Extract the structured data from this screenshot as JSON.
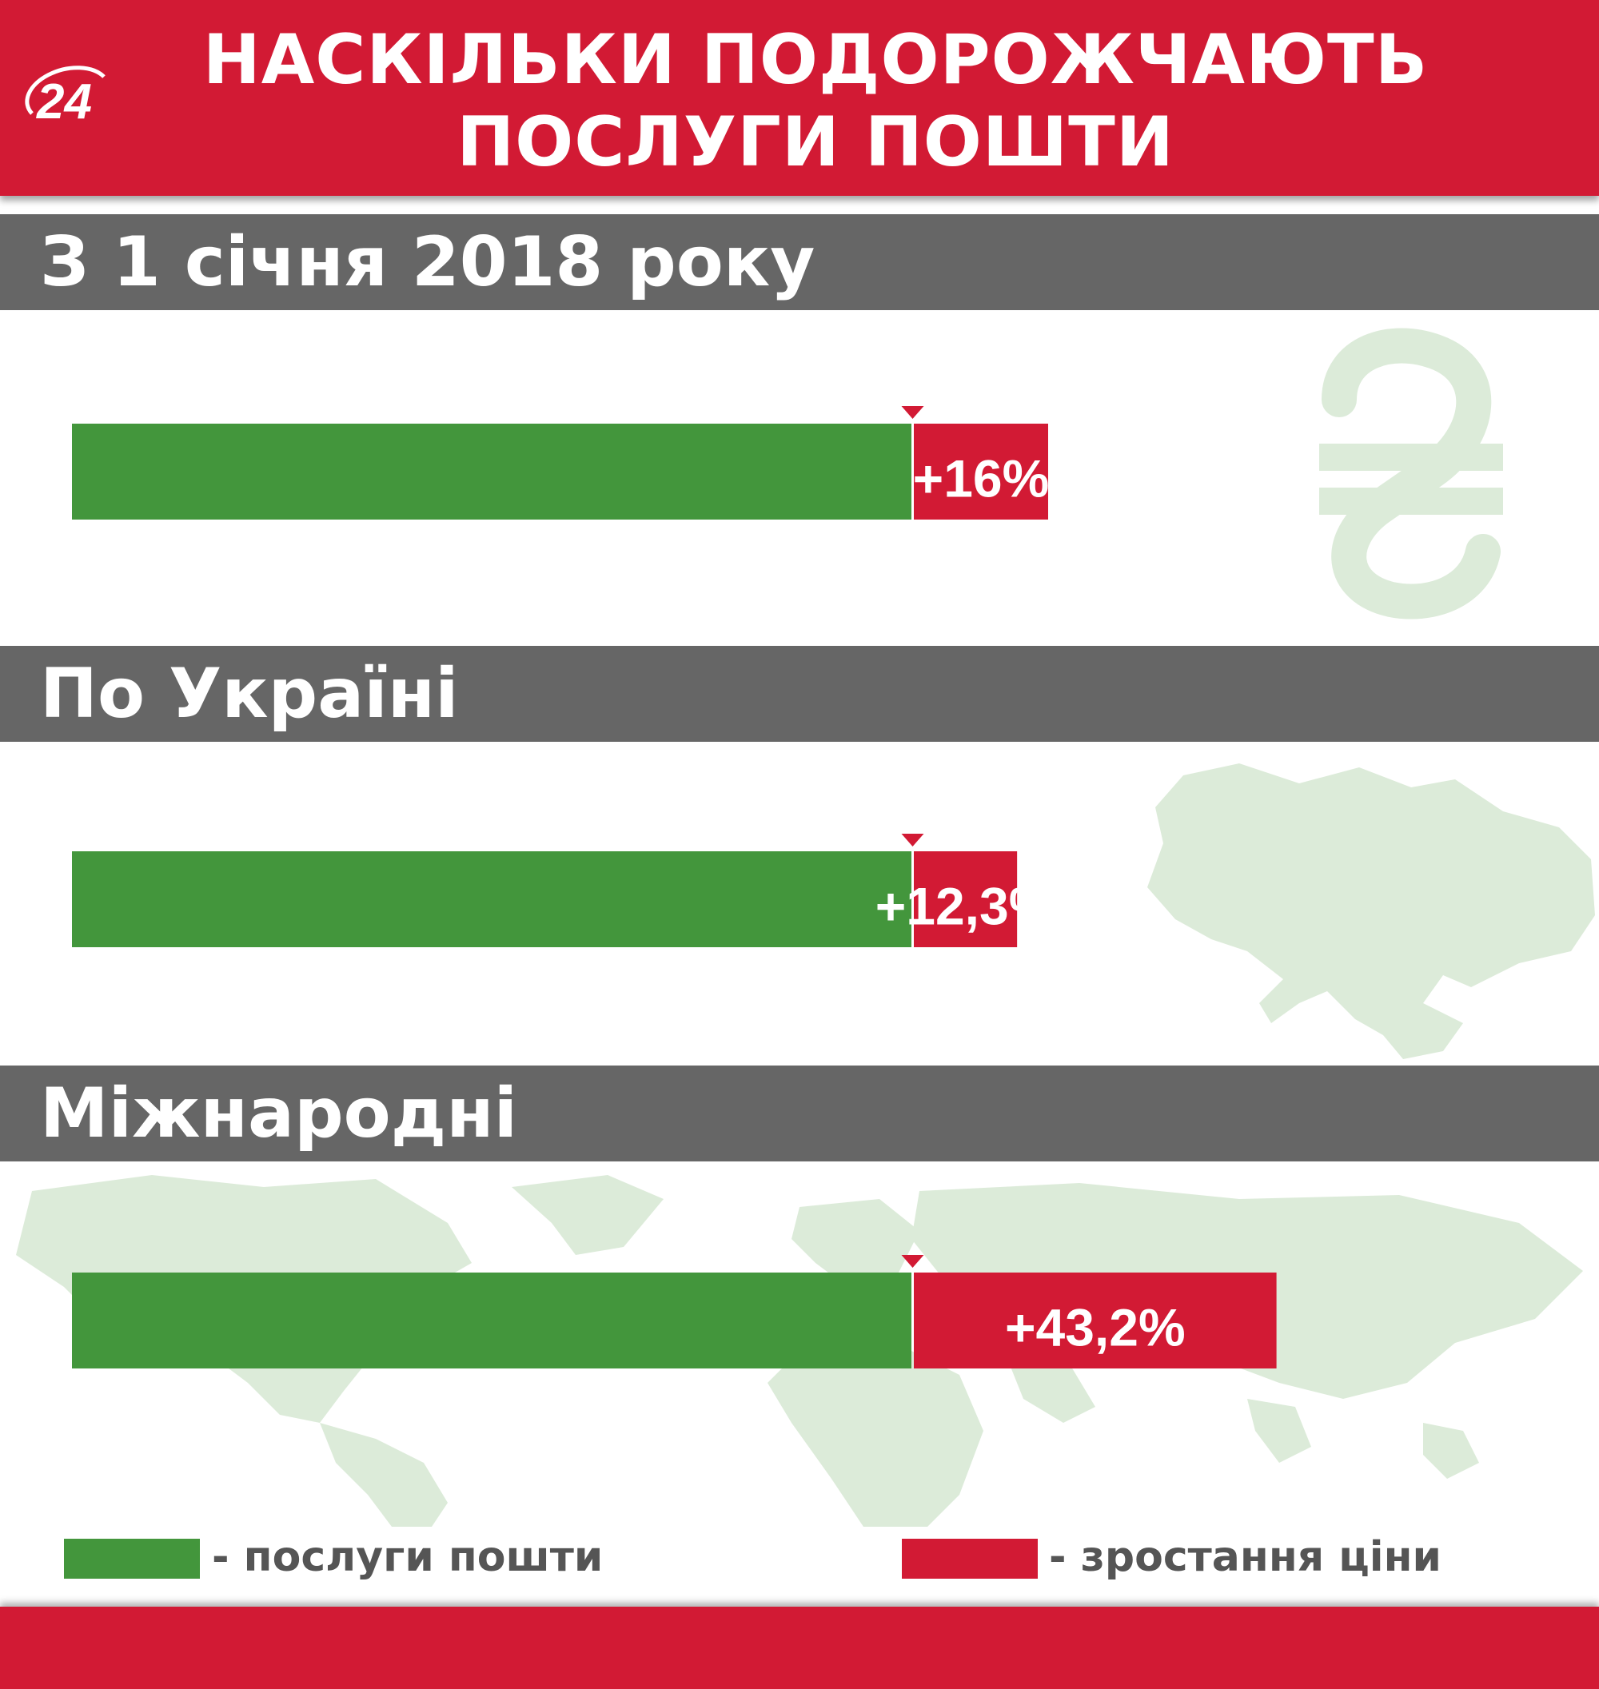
{
  "header": {
    "logo_text": "24",
    "title_line1": "НАСКІЛЬКИ ПОДОРОЖЧАЮТЬ",
    "title_line2": "ПОСЛУГИ ПОШТИ"
  },
  "colors": {
    "brand_red": "#d21a34",
    "service_green": "#43963c",
    "section_gray": "#666666",
    "watermark_green": "#dcebd9"
  },
  "background_icons": [
    "hryvnia-sign-icon",
    "ukraine-map-icon",
    "world-map-icon"
  ],
  "sections": [
    {
      "label": "З 1 січня 2018 року"
    },
    {
      "label": "По Україні"
    },
    {
      "label": "Міжнародні"
    }
  ],
  "chart_data": [
    {
      "type": "bar",
      "orientation": "horizontal-stacked",
      "series": [
        {
          "name": "послуги пошти",
          "values": [
            100
          ]
        },
        {
          "name": "зростання ціни",
          "values": [
            16
          ]
        }
      ],
      "data_labels": [
        "+16%"
      ]
    },
    {
      "type": "bar",
      "orientation": "horizontal-stacked",
      "series": [
        {
          "name": "послуги пошти",
          "values": [
            100
          ]
        },
        {
          "name": "зростання ціни",
          "values": [
            12.3
          ]
        }
      ],
      "data_labels": [
        "+12,3%"
      ]
    },
    {
      "type": "bar",
      "orientation": "horizontal-stacked",
      "series": [
        {
          "name": "послуги пошти",
          "values": [
            100
          ]
        },
        {
          "name": "зростання ціни",
          "values": [
            43.2
          ]
        }
      ],
      "data_labels": [
        "+43,2%"
      ]
    }
  ],
  "legend": [
    {
      "label": "- послуги пошти",
      "color": "#43963c"
    },
    {
      "label": "- зростання ціни",
      "color": "#d21a34"
    }
  ]
}
